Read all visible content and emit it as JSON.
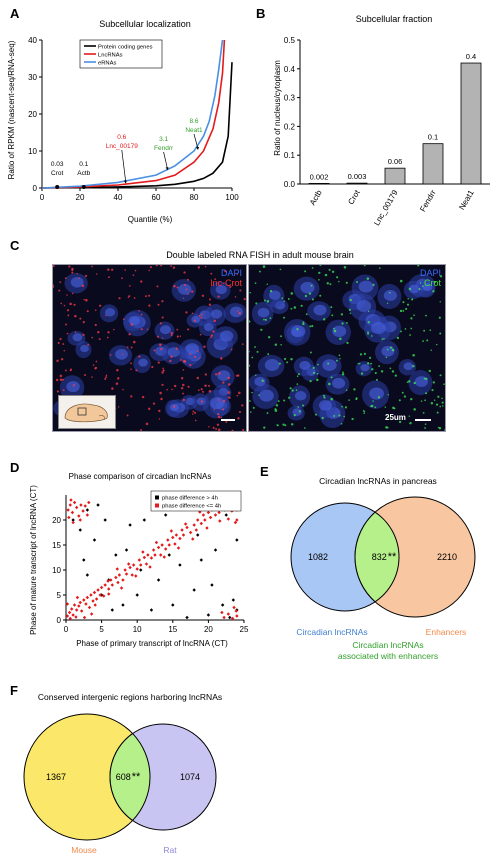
{
  "panelA": {
    "letter": "A",
    "title": "Subcellular localization",
    "ylabel": "Ratio of RPKM (nascent-seq/RNA-seq)",
    "xlabel": "Quantile (%)",
    "legend": [
      "Protein coding genes",
      "LncRNAs",
      "eRNAs"
    ],
    "annotations": [
      {
        "value": "0.03",
        "name": "Crot"
      },
      {
        "value": "0.1",
        "name": "Actb"
      },
      {
        "value": "0.6",
        "name": "Lnc_00179"
      },
      {
        "value": "3.1",
        "name": "Fendrr"
      },
      {
        "value": "8.6",
        "name": "Neat1"
      }
    ]
  },
  "panelB": {
    "letter": "B",
    "title": "Subcellular fraction",
    "ylabel": "Ratio of nucleus/cytoplasm"
  },
  "panelC": {
    "letter": "C",
    "title": "Double labeled RNA FISH in adult mouse brain",
    "left_labels": [
      "DAPI",
      "lnc-Crot"
    ],
    "right_labels": [
      "DAPI",
      "Crot"
    ],
    "scale_label": "25um"
  },
  "panelD": {
    "letter": "D",
    "title": "Phase comparison of circadian lncRNAs",
    "legend": [
      "phase difference > 4h",
      "phase difference <= 4h"
    ]
  },
  "panelE": {
    "letter": "E",
    "title": "Circadian lncRNAs in pancreas",
    "left_only": "1082",
    "overlap": "832",
    "stars": "**",
    "right_only": "2210",
    "left_label": "Circadian lncRNAs",
    "right_label": "Enhancers",
    "overlap_label_line1": "Circadian lncRNAs",
    "overlap_label_line2": "associated with enhancers"
  },
  "panelF": {
    "letter": "F",
    "title": "Conserved intergenic regions harboring lncRNAs",
    "left_only": "1367",
    "overlap": "608",
    "stars": "**",
    "right_only": "1074",
    "left_label": "Mouse",
    "right_label": "Rat"
  },
  "colors": {
    "protein": "#000000",
    "lnc": "#e41a1c",
    "erna": "#4a90e2",
    "green_text": "#33a02c",
    "red_text": "#e41a1c",
    "venn_blue": "#a9c7f5",
    "venn_orange": "#f8c6a0",
    "venn_green": "#b6f08a",
    "venn_yellow": "#fbe86a",
    "venn_lavender": "#c9c5f2",
    "label_blue": "#3f7fd0",
    "label_orange": "#f08a4b",
    "label_lavender": "#8e86d8"
  },
  "chart_data": [
    {
      "type": "line",
      "title": "Subcellular localization",
      "xlabel": "Quantile (%)",
      "ylabel": "Ratio of RPKM (nascent-seq/RNA-seq)",
      "x_ticks": [
        0,
        20,
        40,
        60,
        80,
        100
      ],
      "y_ticks": [
        0,
        10,
        20,
        30,
        40
      ],
      "xlim": [
        0,
        100
      ],
      "ylim": [
        0,
        40
      ],
      "series": [
        {
          "name": "Protein coding genes",
          "x": [
            0,
            20,
            40,
            60,
            70,
            80,
            85,
            90,
            95,
            98,
            100
          ],
          "y": [
            0,
            0.1,
            0.3,
            0.6,
            1,
            1.8,
            2.6,
            4,
            7,
            14,
            34
          ]
        },
        {
          "name": "LncRNAs",
          "x": [
            0,
            20,
            40,
            60,
            70,
            80,
            85,
            90,
            93,
            95,
            96
          ],
          "y": [
            0,
            0.3,
            0.8,
            2,
            3.5,
            7,
            10,
            16,
            23,
            31,
            40
          ]
        },
        {
          "name": "eRNAs",
          "x": [
            0,
            20,
            40,
            60,
            70,
            80,
            85,
            88,
            91,
            93,
            95
          ],
          "y": [
            0,
            0.5,
            1.5,
            3.5,
            6,
            10,
            14,
            18,
            25,
            32,
            40
          ]
        }
      ],
      "annotations": [
        {
          "name": "Crot",
          "value": 0.03,
          "x": 8
        },
        {
          "name": "Actb",
          "value": 0.1,
          "x": 22
        },
        {
          "name": "Lnc_00179",
          "value": 0.6,
          "x": 42
        },
        {
          "name": "Fendrr",
          "value": 3.1,
          "x": 64
        },
        {
          "name": "Neat1",
          "value": 8.6,
          "x": 80
        }
      ]
    },
    {
      "type": "bar",
      "title": "Subcellular fraction",
      "ylabel": "Ratio of nucleus/cytoplasm",
      "categories": [
        "Actb",
        "Crot",
        "Lnc_00179",
        "Fendrr",
        "Neat1"
      ],
      "values": [
        0.002,
        0.003,
        0.06,
        0.1,
        0.4
      ],
      "bar_heights": [
        0.002,
        0.003,
        0.055,
        0.14,
        0.42
      ],
      "data_labels": [
        "0.002",
        "0.003",
        "0.06",
        "0.1",
        "0.4"
      ],
      "y_ticks": [
        "0.0",
        "0.1",
        "0.2",
        "0.3",
        "0.4",
        "0.5"
      ],
      "ylim": [
        0,
        0.5
      ]
    },
    {
      "type": "scatter",
      "title": "Phase comparison of circadian lncRNAs",
      "xlabel": "Phase of primary transcript of lncRNA (CT)",
      "ylabel": "Phase of mature transcript of lncRNA (CT)",
      "x_ticks": [
        0,
        5,
        10,
        15,
        20,
        25
      ],
      "y_ticks": [
        0,
        5,
        10,
        15,
        20
      ],
      "xlim": [
        0,
        25
      ],
      "ylim": [
        0,
        25
      ],
      "series": [
        {
          "name": "phase difference > 4h",
          "color": "#000000",
          "points": [
            [
              1,
              20
            ],
            [
              2,
              18
            ],
            [
              3,
              22
            ],
            [
              4,
              16
            ],
            [
              5,
              5
            ],
            [
              5.5,
              20
            ],
            [
              6,
              8
            ],
            [
              7,
              13
            ],
            [
              8,
              3
            ],
            [
              8.5,
              14
            ],
            [
              9,
              19
            ],
            [
              10,
              5
            ],
            [
              11,
              20
            ],
            [
              12,
              2
            ],
            [
              12.5,
              23
            ],
            [
              13,
              8
            ],
            [
              14,
              21
            ],
            [
              15,
              3
            ],
            [
              16,
              11
            ],
            [
              17,
              0.5
            ],
            [
              18,
              6
            ],
            [
              19,
              12
            ],
            [
              20,
              1
            ],
            [
              21,
              14
            ],
            [
              22,
              3
            ],
            [
              22.5,
              21
            ],
            [
              23,
              0.5
            ],
            [
              23.5,
              4
            ],
            [
              24,
              2
            ],
            [
              24,
              16
            ],
            [
              6.5,
              2
            ],
            [
              3,
              9
            ],
            [
              10.5,
              10
            ],
            [
              18.5,
              17
            ],
            [
              20.5,
              7
            ],
            [
              14.5,
              13
            ],
            [
              2.5,
              12
            ],
            [
              4.5,
              23
            ]
          ]
        },
        {
          "name": "phase difference <= 4h",
          "color": "#e41a1c",
          "points": [
            [
              0.2,
              0.8
            ],
            [
              0.5,
              1.5
            ],
            [
              0.8,
              2.2
            ],
            [
              1,
              1
            ],
            [
              1.2,
              3
            ],
            [
              1.5,
              2
            ],
            [
              1.8,
              2.8
            ],
            [
              2,
              3.5
            ],
            [
              2.2,
              1.8
            ],
            [
              2.5,
              4
            ],
            [
              2.8,
              3.2
            ],
            [
              3,
              4.5
            ],
            [
              3.3,
              2.5
            ],
            [
              3.5,
              5
            ],
            [
              3.8,
              3.8
            ],
            [
              4,
              5.5
            ],
            [
              4.3,
              4.2
            ],
            [
              4.5,
              6
            ],
            [
              4.8,
              5
            ],
            [
              5,
              6.5
            ],
            [
              5.3,
              4.8
            ],
            [
              5.5,
              7
            ],
            [
              6,
              6.2
            ],
            [
              6.3,
              8
            ],
            [
              6.5,
              7
            ],
            [
              7,
              8.5
            ],
            [
              7.3,
              7.5
            ],
            [
              7.5,
              9
            ],
            [
              8,
              8
            ],
            [
              8.3,
              10
            ],
            [
              8.5,
              9.2
            ],
            [
              9,
              10.5
            ],
            [
              9.3,
              9
            ],
            [
              9.5,
              11
            ],
            [
              10,
              10.2
            ],
            [
              10.3,
              12
            ],
            [
              10.5,
              11
            ],
            [
              11,
              12.5
            ],
            [
              11.3,
              11.2
            ],
            [
              11.5,
              13
            ],
            [
              12,
              12.4
            ],
            [
              12.3,
              14
            ],
            [
              12.5,
              13
            ],
            [
              13,
              14.5
            ],
            [
              13.3,
              13
            ],
            [
              13.5,
              15
            ],
            [
              14,
              14.2
            ],
            [
              14.3,
              16
            ],
            [
              14.5,
              15
            ],
            [
              15,
              16.5
            ],
            [
              15.3,
              15.2
            ],
            [
              15.5,
              17
            ],
            [
              16,
              16.3
            ],
            [
              16.3,
              18
            ],
            [
              16.5,
              17
            ],
            [
              17,
              18.5
            ],
            [
              17.5,
              17.5
            ],
            [
              18,
              19
            ],
            [
              18.3,
              18
            ],
            [
              18.5,
              20
            ],
            [
              19,
              19.3
            ],
            [
              19.3,
              21
            ],
            [
              19.5,
              20
            ],
            [
              20,
              21.5
            ],
            [
              20.3,
              20.5
            ],
            [
              20.5,
              22
            ],
            [
              21,
              21
            ],
            [
              21.3,
              22.5
            ],
            [
              21.5,
              21.5
            ],
            [
              22,
              23
            ],
            [
              22.3,
              22
            ],
            [
              22.5,
              23.5
            ],
            [
              23,
              22.5
            ],
            [
              23.3,
              21.8
            ],
            [
              23.5,
              23
            ],
            [
              24,
              22
            ],
            [
              24,
              20
            ],
            [
              23.8,
              19.5
            ],
            [
              22.8,
              20.2
            ],
            [
              24,
              24
            ],
            [
              0.3,
              22
            ],
            [
              0.6,
              23
            ],
            [
              0.9,
              21.5
            ],
            [
              1.2,
              23.5
            ],
            [
              1.5,
              22.5
            ],
            [
              1.8,
              20.8
            ],
            [
              2.1,
              23
            ],
            [
              2.4,
              21.8
            ],
            [
              2.7,
              22.8
            ],
            [
              3,
              21
            ],
            [
              0.4,
              20.5
            ],
            [
              1,
              19.5
            ],
            [
              2,
              20
            ],
            [
              3.2,
              23.5
            ],
            [
              0.7,
              24
            ],
            [
              22.2,
              0.5
            ],
            [
              22.8,
              1.2
            ],
            [
              23.4,
              0.3
            ],
            [
              23.9,
              1.8
            ],
            [
              23.6,
              2.5
            ],
            [
              21.9,
              1.5
            ],
            [
              24,
              0.8
            ],
            [
              0.2,
              3.2
            ],
            [
              0.6,
              0.3
            ],
            [
              1.4,
              0.6
            ],
            [
              6,
              5.2
            ],
            [
              7.8,
              6.4
            ],
            [
              9.8,
              8.8
            ],
            [
              11.8,
              10.6
            ],
            [
              13.8,
              12.6
            ],
            [
              15.8,
              14.4
            ],
            [
              17.8,
              16.2
            ],
            [
              19.8,
              18.4
            ],
            [
              4.1,
              3
            ],
            [
              5.9,
              7.8
            ],
            [
              8.8,
              11.2
            ],
            [
              12.7,
              15.5
            ],
            [
              16.8,
              19.2
            ],
            [
              20.8,
              23.2
            ],
            [
              3.6,
              1.2
            ],
            [
              2.6,
              0.5
            ],
            [
              1.6,
              4.5
            ],
            [
              14.8,
              17.8
            ],
            [
              18.8,
              21.6
            ],
            [
              21.6,
              19.8
            ],
            [
              10.8,
              13.6
            ],
            [
              7.2,
              10.2
            ]
          ]
        }
      ]
    },
    {
      "type": "table",
      "title": "Circadian lncRNAs in pancreas",
      "sets": [
        "Circadian lncRNAs",
        "Enhancers"
      ],
      "left_only": 1082,
      "overlap": 832,
      "right_only": 2210
    },
    {
      "type": "table",
      "title": "Conserved intergenic regions harboring lncRNAs",
      "sets": [
        "Mouse",
        "Rat"
      ],
      "left_only": 1367,
      "overlap": 608,
      "right_only": 1074
    }
  ]
}
